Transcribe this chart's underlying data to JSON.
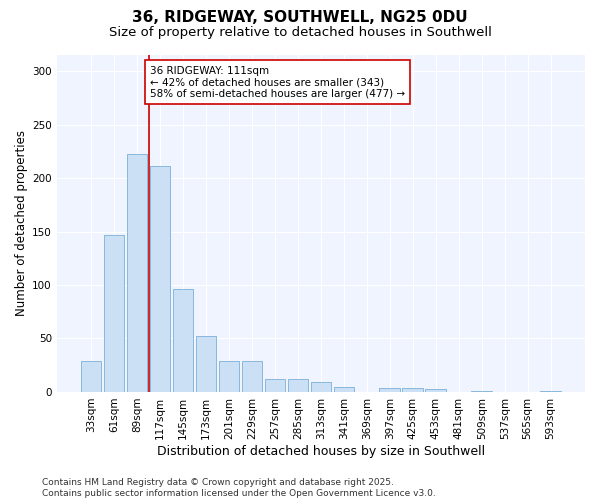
{
  "title": "36, RIDGEWAY, SOUTHWELL, NG25 0DU",
  "subtitle": "Size of property relative to detached houses in Southwell",
  "xlabel": "Distribution of detached houses by size in Southwell",
  "ylabel": "Number of detached properties",
  "categories": [
    "33sqm",
    "61sqm",
    "89sqm",
    "117sqm",
    "145sqm",
    "173sqm",
    "201sqm",
    "229sqm",
    "257sqm",
    "285sqm",
    "313sqm",
    "341sqm",
    "369sqm",
    "397sqm",
    "425sqm",
    "453sqm",
    "481sqm",
    "509sqm",
    "537sqm",
    "565sqm",
    "593sqm"
  ],
  "values": [
    29,
    147,
    222,
    211,
    96,
    52,
    29,
    29,
    12,
    12,
    9,
    5,
    0,
    4,
    4,
    3,
    0,
    1,
    0,
    0,
    1
  ],
  "bar_color": "#cce0f5",
  "bar_edge_color": "#7ab0d8",
  "vline_index": 2.5,
  "vline_color": "#cc0000",
  "annotation_text": "36 RIDGEWAY: 111sqm\n← 42% of detached houses are smaller (343)\n58% of semi-detached houses are larger (477) →",
  "annotation_box_facecolor": "#ffffff",
  "annotation_box_edgecolor": "#cc0000",
  "annotation_fontsize": 7.5,
  "ylim": [
    0,
    315
  ],
  "yticks": [
    0,
    50,
    100,
    150,
    200,
    250,
    300
  ],
  "fig_facecolor": "#ffffff",
  "plot_facecolor": "#f0f4ff",
  "title_fontsize": 11,
  "subtitle_fontsize": 9.5,
  "xlabel_fontsize": 9,
  "ylabel_fontsize": 8.5,
  "tick_fontsize": 7.5,
  "footer": "Contains HM Land Registry data © Crown copyright and database right 2025.\nContains public sector information licensed under the Open Government Licence v3.0.",
  "footer_fontsize": 6.5
}
